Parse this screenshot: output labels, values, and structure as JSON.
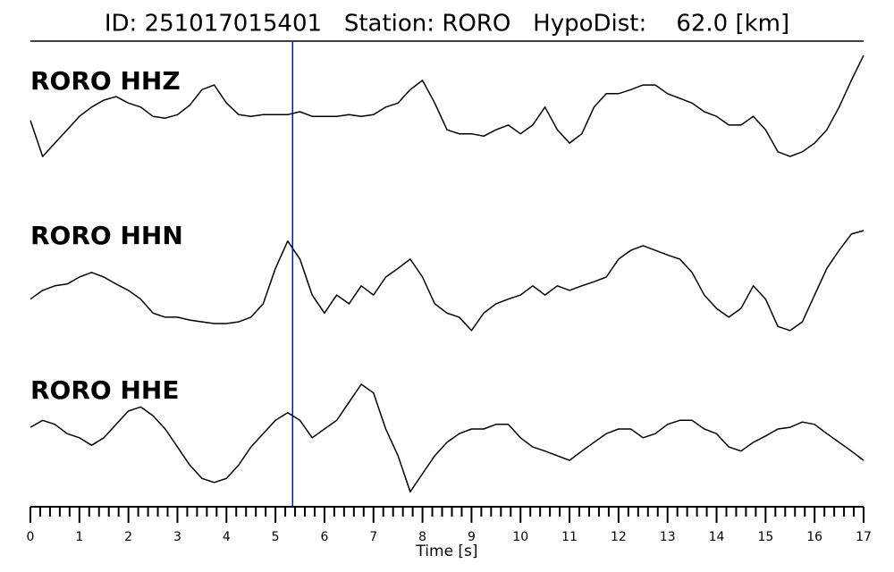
{
  "chart_data": {
    "type": "line",
    "title": "ID: 251017015401   Station: RORO   HypoDist:    62.0 [km]",
    "xlabel": "Time [s]",
    "xlim": [
      0,
      17
    ],
    "xticks": [
      0,
      1,
      2,
      3,
      4,
      5,
      6,
      7,
      8,
      9,
      10,
      11,
      12,
      13,
      14,
      15,
      16,
      17
    ],
    "minor_ticks_per_major": 5,
    "ylim": [
      -1.2,
      1.2
    ],
    "label_color": "#4c9a0a",
    "markers": [
      {
        "x": 5.35,
        "color": "#0000ff"
      }
    ],
    "x": [
      0,
      0.25,
      0.5,
      0.75,
      1,
      1.25,
      1.5,
      1.75,
      2,
      2.25,
      2.5,
      2.75,
      3,
      3.25,
      3.5,
      3.75,
      4,
      4.25,
      4.5,
      4.75,
      5,
      5.25,
      5.5,
      5.75,
      6,
      6.25,
      6.5,
      6.75,
      7,
      7.25,
      7.5,
      7.75,
      8,
      8.25,
      8.5,
      8.75,
      9,
      9.25,
      9.5,
      9.75,
      10,
      10.25,
      10.5,
      10.75,
      11,
      11.25,
      11.5,
      11.75,
      12,
      12.25,
      12.5,
      12.75,
      13,
      13.25,
      13.5,
      13.75,
      14,
      14.25,
      14.5,
      14.75,
      15,
      15.25,
      15.5,
      15.75,
      16,
      16.25,
      16.5,
      16.75,
      17
    ],
    "series": [
      {
        "name": "RORO HHZ",
        "color": "#000000",
        "values": [
          -0.15,
          -0.77,
          -0.54,
          -0.31,
          -0.08,
          0.08,
          0.2,
          0.26,
          0.15,
          0.08,
          -0.08,
          -0.11,
          -0.05,
          0.11,
          0.38,
          0.46,
          0.15,
          -0.05,
          -0.08,
          -0.05,
          -0.05,
          -0.05,
          0,
          -0.08,
          -0.08,
          -0.08,
          -0.05,
          -0.08,
          -0.05,
          0.08,
          0.15,
          0.38,
          0.54,
          0.15,
          -0.31,
          -0.38,
          -0.38,
          -0.42,
          -0.31,
          -0.23,
          -0.38,
          -0.23,
          0.08,
          -0.31,
          -0.54,
          -0.38,
          0.08,
          0.31,
          0.31,
          0.38,
          0.46,
          0.46,
          0.31,
          0.23,
          0.15,
          0,
          -0.08,
          -0.23,
          -0.23,
          -0.08,
          -0.31,
          -0.69,
          -0.77,
          -0.69,
          -0.54,
          -0.31,
          0.08,
          0.54,
          0.97
        ]
      },
      {
        "name": "RORO HHN",
        "color": "#000000",
        "values": [
          -0.38,
          -0.23,
          -0.15,
          -0.12,
          0,
          0.08,
          0,
          -0.12,
          -0.23,
          -0.38,
          -0.62,
          -0.69,
          -0.69,
          -0.74,
          -0.77,
          -0.8,
          -0.8,
          -0.77,
          -0.69,
          -0.46,
          0.15,
          0.62,
          0.31,
          -0.31,
          -0.62,
          -0.31,
          -0.46,
          -0.15,
          -0.31,
          0,
          0.15,
          0.31,
          0,
          -0.46,
          -0.62,
          -0.69,
          -0.92,
          -0.62,
          -0.46,
          -0.38,
          -0.31,
          -0.15,
          -0.31,
          -0.15,
          -0.23,
          -0.15,
          -0.08,
          0,
          0.31,
          0.46,
          0.54,
          0.46,
          0.38,
          0.31,
          0.08,
          -0.31,
          -0.54,
          -0.69,
          -0.54,
          -0.15,
          -0.38,
          -0.85,
          -0.92,
          -0.77,
          -0.31,
          0.15,
          0.46,
          0.74,
          0.8
        ]
      },
      {
        "name": "RORO HHE",
        "color": "#000000",
        "values": [
          0.03,
          0.15,
          0.08,
          -0.08,
          -0.15,
          -0.28,
          -0.15,
          0.08,
          0.31,
          0.38,
          0.23,
          0,
          -0.31,
          -0.62,
          -0.85,
          -0.92,
          -0.85,
          -0.62,
          -0.31,
          -0.08,
          0.15,
          0.28,
          0.15,
          -0.15,
          0,
          0.15,
          0.46,
          0.77,
          0.62,
          0,
          -0.46,
          -1.08,
          -0.77,
          -0.46,
          -0.23,
          -0.08,
          0,
          0,
          0.08,
          0.08,
          -0.15,
          -0.31,
          -0.38,
          -0.46,
          -0.54,
          -0.38,
          -0.23,
          -0.08,
          0,
          0,
          -0.15,
          -0.08,
          0.08,
          0.15,
          0.15,
          0,
          -0.08,
          -0.31,
          -0.38,
          -0.23,
          -0.12,
          0,
          0.03,
          0.12,
          0.08,
          -0.08,
          -0.23,
          -0.38,
          -0.54
        ]
      }
    ]
  }
}
